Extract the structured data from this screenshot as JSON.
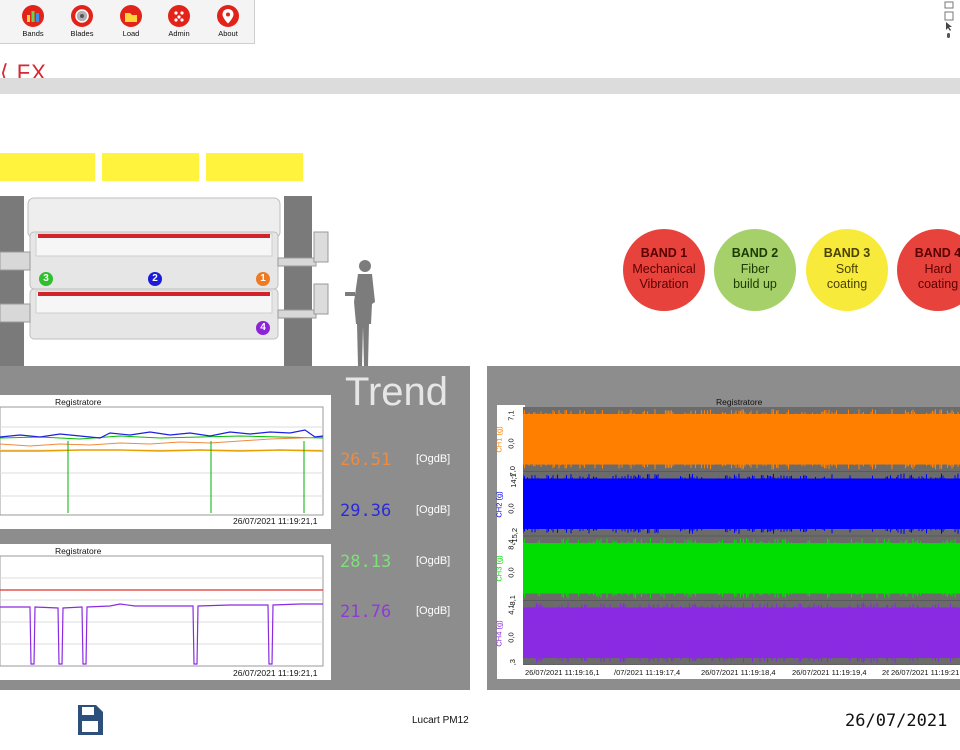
{
  "toolbar": {
    "buttons": [
      {
        "label": "Bands",
        "icon": "bands-chart-icon"
      },
      {
        "label": "Blades",
        "icon": "blade-disc-icon"
      },
      {
        "label": "Load",
        "icon": "folder-open-icon"
      },
      {
        "label": "Admin",
        "icon": "admin-gear-icon"
      },
      {
        "label": "About",
        "icon": "location-pin-icon"
      }
    ]
  },
  "header": {
    "title": "FX"
  },
  "machine": {
    "markers": [
      "3",
      "2",
      "1",
      "4"
    ]
  },
  "bands": [
    {
      "title": "BAND 1",
      "line1": "Mechanical",
      "line2": "Vibration",
      "color": "#e8423c",
      "text_color": "#5a0000"
    },
    {
      "title": "BAND 2",
      "line1": "Fiber",
      "line2": "build up",
      "color": "#a5d06a",
      "text_color": "#1d3a00"
    },
    {
      "title": "BAND 3",
      "line1": "Soft",
      "line2": "coating",
      "color": "#f7ea3a",
      "text_color": "#4a4200"
    },
    {
      "title": "BAND 4",
      "line1": "Hard",
      "line2": "coating",
      "color": "#e8423c",
      "text_color": "#5a0000"
    }
  ],
  "trend": {
    "title": "Trend",
    "chart1": {
      "title": "Registratore",
      "timestamp": "26/07/2021 11:19:21,1"
    },
    "chart2": {
      "title": "Registratore",
      "timestamp": "26/07/2021 11:19:21,1"
    },
    "readings": [
      {
        "value": "26.51",
        "unit": "[OgdB]",
        "color": "#f08a3c"
      },
      {
        "value": "29.36",
        "unit": "[OgdB]",
        "color": "#2b2bd6"
      },
      {
        "value": "28.13",
        "unit": "[OgdB]",
        "color": "#7fe07a"
      },
      {
        "value": "21.76",
        "unit": "[OgdB]",
        "color": "#8f3ad6"
      }
    ]
  },
  "recorder": {
    "title": "Registratore",
    "channels": [
      {
        "name": "CH1 (g)",
        "color": "#ff8000",
        "ticks": [
          "7,1",
          "0,0",
          "-7,0"
        ]
      },
      {
        "name": "CH2 (g)",
        "color": "#0000ff",
        "ticks": [
          "14,1",
          "0,0",
          "-15,2"
        ]
      },
      {
        "name": "CH3 (g)",
        "color": "#00dd00",
        "ticks": [
          "8,4",
          "0,0",
          "-8,1"
        ]
      },
      {
        "name": "CH4 (g)",
        "color": "#8a2be2",
        "ticks": [
          "4,1",
          "0,0",
          "-4,3"
        ]
      }
    ],
    "x_ticks": [
      "26/07/2021 11:19:16,1",
      "/07/2021 11:19:17,4",
      "26/07/2021 11:19:18,4",
      "26/07/2021 11:19:19,4",
      "26",
      "26/07/2021 11:19:21"
    ]
  },
  "footer": {
    "name": "Lucart PM12",
    "date": "26/07/2021"
  }
}
